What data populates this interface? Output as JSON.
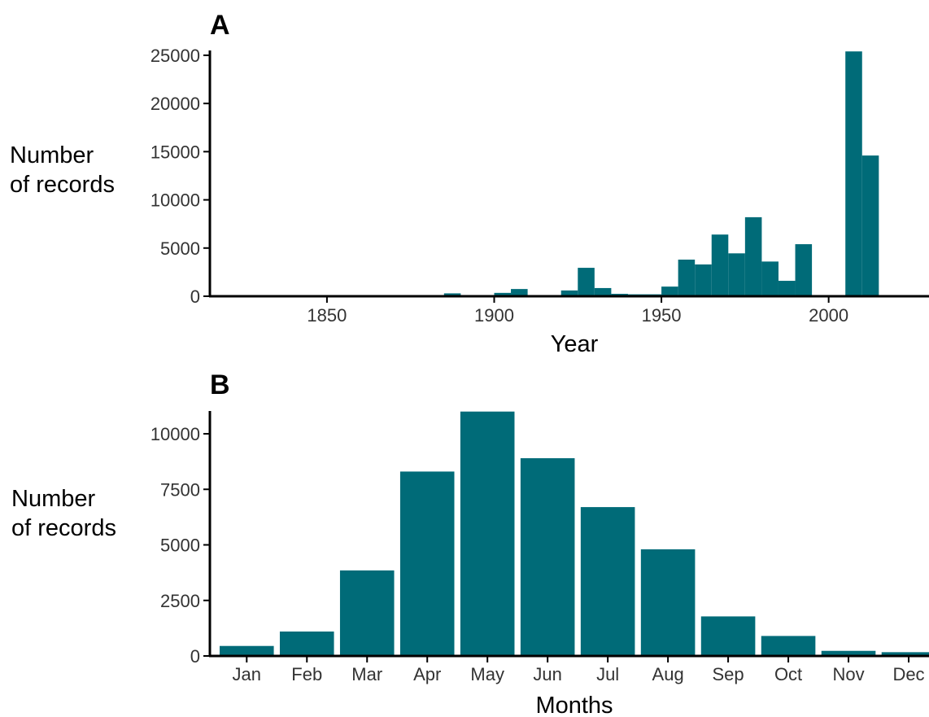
{
  "colors": {
    "bar": "#006b78",
    "axis": "#000000"
  },
  "chart_data": [
    {
      "type": "bar",
      "panel": "A",
      "title": "",
      "xlabel": "Year",
      "ylabel_lines": [
        "Number",
        "of records"
      ],
      "xlim": [
        1815,
        2030
      ],
      "ylim": [
        0,
        25500
      ],
      "xticks": [
        1850,
        1900,
        1950,
        2000
      ],
      "yticks": [
        0,
        5000,
        10000,
        15000,
        20000,
        25000
      ],
      "bin_width": 5,
      "x": [
        1885,
        1890,
        1895,
        1900,
        1905,
        1910,
        1915,
        1920,
        1925,
        1930,
        1935,
        1940,
        1945,
        1950,
        1955,
        1960,
        1965,
        1970,
        1975,
        1980,
        1985,
        1990,
        1995,
        2000,
        2005,
        2010,
        2015
      ],
      "values": [
        300,
        100,
        50,
        350,
        750,
        50,
        100,
        600,
        2950,
        850,
        250,
        200,
        200,
        1000,
        3800,
        3300,
        6400,
        4450,
        8200,
        3600,
        1600,
        5400,
        100,
        0,
        25400,
        14600,
        0
      ],
      "grid": false
    },
    {
      "type": "bar",
      "panel": "B",
      "title": "",
      "xlabel": "Months",
      "ylabel_lines": [
        "Number",
        "of records"
      ],
      "categories": [
        "Jan",
        "Feb",
        "Mar",
        "Apr",
        "May",
        "Jun",
        "Jul",
        "Aug",
        "Sep",
        "Oct",
        "Nov",
        "Dec"
      ],
      "values": [
        450,
        1100,
        3850,
        8300,
        11000,
        8900,
        6700,
        4800,
        1780,
        900,
        230,
        170
      ],
      "ylim": [
        0,
        11000
      ],
      "yticks": [
        0,
        2500,
        5000,
        7500,
        10000
      ],
      "grid": false
    }
  ]
}
